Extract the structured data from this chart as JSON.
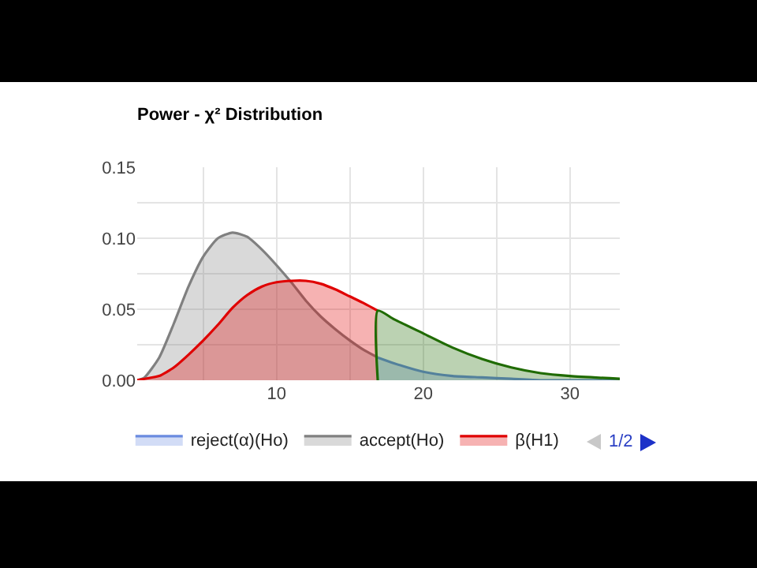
{
  "chart_data": {
    "type": "area",
    "title": "Power - χ² Distribution",
    "xlim": [
      0.5,
      33.4
    ],
    "xticks": [
      {
        "value": 5,
        "label": null
      },
      10,
      {
        "value": 15,
        "label": null
      },
      20,
      {
        "value": 25,
        "label": null
      },
      30
    ],
    "ylim": [
      0,
      0.15
    ],
    "yticks": [
      {
        "value": 0,
        "label": "0.00"
      },
      {
        "value": 0.025,
        "label": null
      },
      {
        "value": 0.05,
        "label": "0.05"
      },
      {
        "value": 0.075,
        "label": null
      },
      {
        "value": 0.1,
        "label": "0.10"
      },
      {
        "value": 0.125,
        "label": null
      },
      {
        "value": 0.15,
        "label": "0.15"
      }
    ],
    "grid": true,
    "legend": "bottom",
    "annotations": [
      "1/2"
    ],
    "series": [
      {
        "name": "reject(α)(Ho)",
        "color": "#6b8be0",
        "x": [
          16.9,
          18,
          20,
          22,
          24,
          26,
          28,
          30,
          33.4
        ],
        "values": [
          0.016,
          0.012,
          0.006,
          0.003,
          0.002,
          0.001,
          0,
          0,
          0
        ]
      },
      {
        "name": "accept(Ho)",
        "color": "#808080",
        "x": [
          0.5,
          1,
          2,
          3,
          4,
          5,
          6,
          7,
          8,
          9,
          10,
          11,
          12,
          13,
          14,
          15,
          16,
          16.9
        ],
        "values": [
          0,
          0.002,
          0.016,
          0.04,
          0.066,
          0.087,
          0.1,
          0.104,
          0.101,
          0.092,
          0.081,
          0.069,
          0.056,
          0.045,
          0.036,
          0.028,
          0.021,
          0.016
        ]
      },
      {
        "name": "β(H1)",
        "color": "#e00000",
        "x": [
          0.5,
          1,
          2,
          3,
          4,
          5,
          6,
          7,
          8,
          9,
          10,
          11,
          12,
          13,
          14,
          15,
          16,
          16.9
        ],
        "values": [
          0,
          0.001,
          0.003,
          0.009,
          0.018,
          0.028,
          0.039,
          0.051,
          0.06,
          0.066,
          0.069,
          0.07,
          0.07,
          0.068,
          0.064,
          0.059,
          0.054,
          0.049
        ]
      },
      {
        "color": "#1f6b00",
        "x": [
          16.9,
          16.9,
          18,
          20,
          22,
          24,
          26,
          28,
          30,
          33.4
        ],
        "values": [
          0,
          0.049,
          0.043,
          0.033,
          0.023,
          0.015,
          0.009,
          0.005,
          0.003,
          0.001
        ]
      }
    ]
  }
}
